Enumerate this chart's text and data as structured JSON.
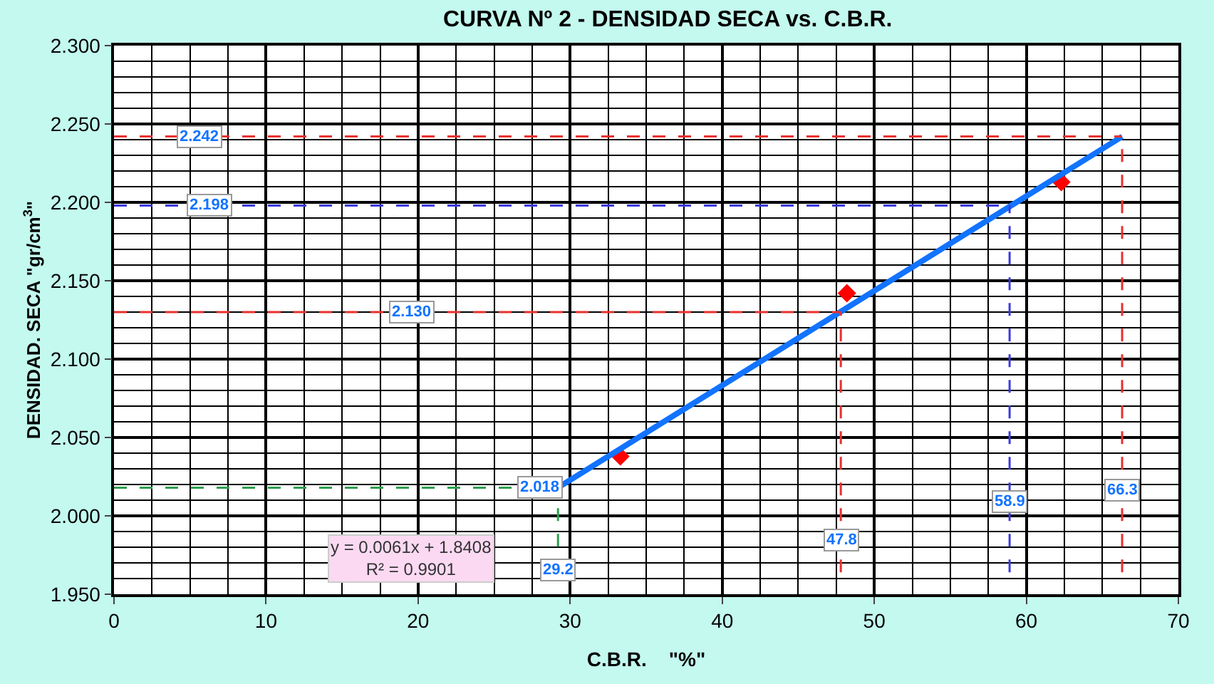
{
  "chart_data": {
    "type": "scatter",
    "title": "CURVA Nº 2 - DENSIDAD SECA vs. C.B.R.",
    "xlabel": "C.B.R.    \"%\"",
    "ylabel": "DENSIDAD. SECA \"gr/cm$^{3}$\"",
    "series": [
      {
        "color": "#ff0000",
        "marker": "diamond",
        "x": [
          33.3,
          48.2,
          62.3
        ],
        "values": [
          2.038,
          2.142,
          2.213
        ]
      },
      {
        "type": "line",
        "color": "#1273ff",
        "marker": "none",
        "line_style": "solid",
        "x": [
          29.2,
          66.3
        ],
        "values": [
          2.018,
          2.242
        ]
      }
    ],
    "ref_lines": [
      {
        "axis": "y",
        "value": 2.018,
        "label": "2.018",
        "color": "#2e9e4f",
        "line_style": "dashed"
      },
      {
        "axis": "x",
        "value": 29.2,
        "label": "29.2",
        "color": "#2e9e4f",
        "line_style": "dashed"
      },
      {
        "axis": "y",
        "value": 2.13,
        "label": "2.130",
        "color": "#e8312f",
        "line_style": "dashed"
      },
      {
        "axis": "x",
        "value": 47.8,
        "label": "47.8",
        "color": "#e8312f",
        "line_style": "dashed"
      },
      {
        "axis": "y",
        "value": 2.198,
        "label": "2.198",
        "color": "#3a3ae0",
        "line_style": "dashed"
      },
      {
        "axis": "x",
        "value": 58.9,
        "label": "58.9",
        "color": "#3a3ae0",
        "line_style": "dashed"
      },
      {
        "axis": "y",
        "value": 2.242,
        "label": "2.242",
        "color": "#e8312f",
        "line_style": "dashed"
      },
      {
        "axis": "x",
        "value": 66.3,
        "label": "66.3",
        "color": "#e8312f",
        "line_style": "dashed"
      }
    ],
    "annotations": [
      "y = 0.0061x + 1.8408\nR² = 0.9901"
    ],
    "xlim": [
      0,
      70
    ],
    "xticks": [
      0,
      10,
      20,
      30,
      40,
      50,
      60,
      70
    ],
    "ylim": [
      1.95,
      2.3
    ],
    "yticks": [
      {
        "value": 1.95,
        "label": "1.950"
      },
      {
        "value": 2.0,
        "label": "2.000"
      },
      {
        "value": 2.05,
        "label": "2.050"
      },
      {
        "value": 2.1,
        "label": "2.100"
      },
      {
        "value": 2.15,
        "label": "2.150"
      },
      {
        "value": 2.2,
        "label": "2.200"
      },
      {
        "value": 2.25,
        "label": "2.250"
      },
      {
        "value": 2.3,
        "label": "2.300"
      }
    ],
    "grid": true
  }
}
